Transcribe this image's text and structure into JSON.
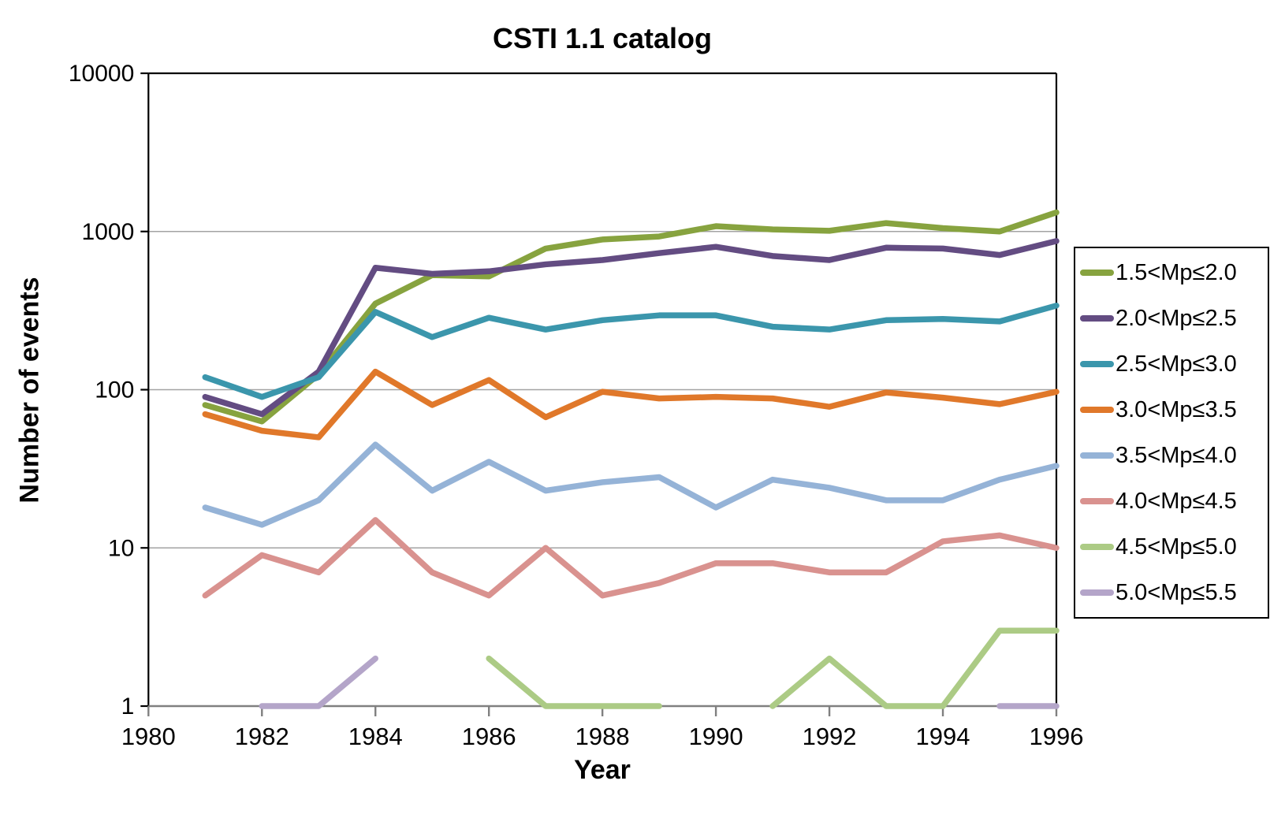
{
  "header": {
    "title": "CSTI 1.1 catalog"
  },
  "chart_data": {
    "type": "line",
    "title": "CSTI 1.1 catalog",
    "xlabel": "Year",
    "ylabel": "Number of events",
    "legend_position": "right",
    "grid": "horizontal gridlines at powers of 10",
    "x_axis": {
      "min": 1980,
      "max": 1996,
      "tick_labels": [
        1980,
        1982,
        1984,
        1986,
        1988,
        1990,
        1992,
        1994,
        1996
      ]
    },
    "y_axis": {
      "scale": "log",
      "min": 1,
      "max": 10000,
      "tick_labels": [
        1,
        10,
        100,
        1000,
        10000
      ]
    },
    "x": [
      1981,
      1982,
      1983,
      1984,
      1985,
      1986,
      1987,
      1988,
      1989,
      1990,
      1991,
      1992,
      1993,
      1994,
      1995,
      1996
    ],
    "series": [
      {
        "name": "1.5<Mp≤2.0",
        "color": "#87A33F",
        "values": [
          80,
          63,
          125,
          350,
          530,
          520,
          780,
          890,
          930,
          1080,
          1030,
          1010,
          1130,
          1050,
          1000,
          1320
        ]
      },
      {
        "name": "2.0<Mp≤2.5",
        "color": "#634C82",
        "values": [
          90,
          70,
          130,
          590,
          540,
          560,
          620,
          660,
          730,
          800,
          700,
          660,
          790,
          780,
          710,
          870
        ]
      },
      {
        "name": "2.5<Mp≤3.0",
        "color": "#3B96AC",
        "values": [
          120,
          90,
          120,
          310,
          215,
          285,
          240,
          275,
          295,
          295,
          250,
          240,
          275,
          280,
          270,
          340
        ]
      },
      {
        "name": "3.0<Mp≤3.5",
        "color": "#E0782A",
        "values": [
          70,
          55,
          50,
          130,
          80,
          115,
          67,
          97,
          88,
          90,
          88,
          78,
          96,
          89,
          81,
          97
        ]
      },
      {
        "name": "3.5<Mp≤4.0",
        "color": "#95B3D7",
        "values": [
          18,
          14,
          20,
          45,
          23,
          35,
          23,
          26,
          28,
          18,
          27,
          24,
          20,
          20,
          27,
          33
        ]
      },
      {
        "name": "4.0<Mp≤4.5",
        "color": "#D9928F",
        "values": [
          5,
          9,
          7,
          15,
          7,
          5,
          10,
          5,
          6,
          8,
          8,
          7,
          7,
          11,
          12,
          10
        ]
      },
      {
        "name": "4.5<Mp≤5.0",
        "color": "#ACCB85",
        "values": [
          null,
          null,
          null,
          null,
          null,
          2,
          1,
          1,
          1,
          null,
          1,
          2,
          1,
          1,
          3,
          3
        ]
      },
      {
        "name": "5.0<Mp≤5.5",
        "color": "#B4A5C9",
        "values": [
          null,
          1,
          1,
          2,
          null,
          null,
          null,
          null,
          null,
          null,
          null,
          null,
          null,
          null,
          1,
          1
        ]
      }
    ],
    "style": {
      "plot_frame_color": "#000000",
      "axis_line_color": "#808080",
      "gridline_color": "#A3A3A3",
      "text_color": "#000000",
      "background": "#FFFFFF"
    }
  }
}
